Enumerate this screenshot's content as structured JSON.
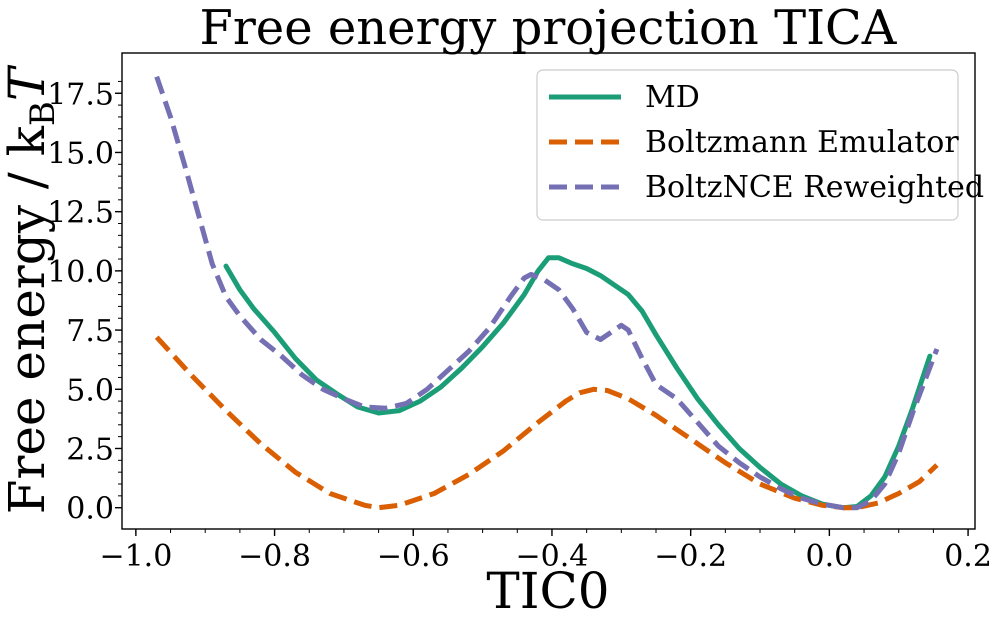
{
  "chart_data": {
    "type": "line",
    "title": "Free energy projection TICA",
    "xlabel": "TIC0",
    "ylabel": "Free energy / k_B T",
    "ylabel_parts": {
      "main": "Free energy / k",
      "sub": "B",
      "tail": "T"
    },
    "xlim": [
      -1.02,
      0.21
    ],
    "ylim": [
      -0.9,
      19.2
    ],
    "xticks": [
      -1.0,
      -0.8,
      -0.6,
      -0.4,
      -0.2,
      0.0,
      0.2
    ],
    "xtick_labels": [
      "−1.0",
      "−0.8",
      "−0.6",
      "−0.4",
      "−0.2",
      "0.0",
      "0.2"
    ],
    "yticks": [
      0.0,
      2.5,
      5.0,
      7.5,
      10.0,
      12.5,
      15.0,
      17.5
    ],
    "ytick_labels": [
      "0.0",
      "2.5",
      "5.0",
      "7.5",
      "10.0",
      "12.5",
      "15.0",
      "17.5"
    ],
    "legend_position": "top-right",
    "grid": false,
    "series": [
      {
        "name": "MD",
        "color": "#1b9e77",
        "style": "solid",
        "x": [
          -0.87,
          -0.85,
          -0.83,
          -0.8,
          -0.77,
          -0.74,
          -0.71,
          -0.68,
          -0.65,
          -0.62,
          -0.59,
          -0.56,
          -0.53,
          -0.5,
          -0.47,
          -0.44,
          -0.42,
          -0.405,
          -0.39,
          -0.37,
          -0.35,
          -0.33,
          -0.31,
          -0.29,
          -0.27,
          -0.25,
          -0.22,
          -0.19,
          -0.16,
          -0.13,
          -0.1,
          -0.07,
          -0.04,
          -0.01,
          0.02,
          0.04,
          0.06,
          0.08,
          0.1,
          0.12,
          0.145
        ],
        "y": [
          10.2,
          9.2,
          8.4,
          7.4,
          6.3,
          5.4,
          4.8,
          4.25,
          4.0,
          4.1,
          4.5,
          5.1,
          5.9,
          6.8,
          7.8,
          9.0,
          10.0,
          10.55,
          10.55,
          10.3,
          10.1,
          9.8,
          9.4,
          9.0,
          8.3,
          7.3,
          5.9,
          4.6,
          3.5,
          2.5,
          1.7,
          1.0,
          0.5,
          0.15,
          0.0,
          0.05,
          0.5,
          1.3,
          2.6,
          4.2,
          6.4
        ]
      },
      {
        "name": "Boltzmann Emulator",
        "color": "#d95f02",
        "style": "dashed",
        "x": [
          -0.97,
          -0.92,
          -0.87,
          -0.82,
          -0.77,
          -0.72,
          -0.67,
          -0.65,
          -0.62,
          -0.57,
          -0.52,
          -0.47,
          -0.42,
          -0.38,
          -0.36,
          -0.34,
          -0.32,
          -0.29,
          -0.25,
          -0.2,
          -0.15,
          -0.1,
          -0.05,
          -0.01,
          0.02,
          0.04,
          0.07,
          0.1,
          0.13,
          0.155
        ],
        "y": [
          7.2,
          5.6,
          4.1,
          2.7,
          1.5,
          0.6,
          0.1,
          0.0,
          0.1,
          0.6,
          1.4,
          2.4,
          3.6,
          4.5,
          4.85,
          5.0,
          4.95,
          4.6,
          3.9,
          2.9,
          1.9,
          1.0,
          0.4,
          0.1,
          0.0,
          0.0,
          0.2,
          0.6,
          1.1,
          1.8
        ]
      },
      {
        "name": "BoltzNCE Reweighted",
        "color": "#7570b3",
        "style": "dashed",
        "x": [
          -0.97,
          -0.95,
          -0.93,
          -0.91,
          -0.89,
          -0.87,
          -0.85,
          -0.82,
          -0.79,
          -0.76,
          -0.73,
          -0.7,
          -0.67,
          -0.64,
          -0.61,
          -0.58,
          -0.55,
          -0.52,
          -0.49,
          -0.46,
          -0.44,
          -0.43,
          -0.41,
          -0.39,
          -0.37,
          -0.35,
          -0.33,
          -0.315,
          -0.3,
          -0.29,
          -0.27,
          -0.25,
          -0.22,
          -0.19,
          -0.16,
          -0.13,
          -0.1,
          -0.07,
          -0.04,
          -0.01,
          0.02,
          0.04,
          0.06,
          0.08,
          0.1,
          0.12,
          0.155
        ],
        "y": [
          18.2,
          16.5,
          14.5,
          12.4,
          10.3,
          8.9,
          8.1,
          7.1,
          6.4,
          5.6,
          5.0,
          4.6,
          4.25,
          4.2,
          4.4,
          5.0,
          5.8,
          6.6,
          7.6,
          8.9,
          9.7,
          9.85,
          9.6,
          9.2,
          8.4,
          7.4,
          7.1,
          7.4,
          7.7,
          7.5,
          6.3,
          5.2,
          4.6,
          3.6,
          2.6,
          1.9,
          1.3,
          0.8,
          0.4,
          0.15,
          0.0,
          0.0,
          0.3,
          1.0,
          2.3,
          4.0,
          6.7
        ]
      }
    ]
  }
}
